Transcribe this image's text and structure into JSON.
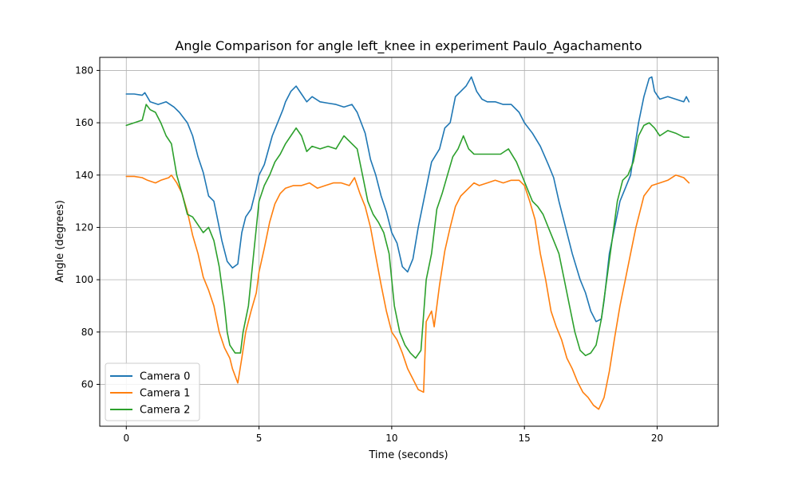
{
  "chart_data": {
    "type": "line",
    "title": "Angle Comparison for angle left_knee in experiment Paulo_Agachamento",
    "xlabel": "Time (seconds)",
    "ylabel": "Angle (degrees)",
    "xlim": [
      -1.0,
      22.3
    ],
    "ylim": [
      44,
      185
    ],
    "xticks": [
      0,
      5,
      10,
      15,
      20
    ],
    "xtick_labels": [
      "0",
      "5",
      "10",
      "15",
      "20"
    ],
    "yticks": [
      60,
      80,
      100,
      120,
      140,
      160,
      180
    ],
    "ytick_labels": [
      "60",
      "80",
      "100",
      "120",
      "140",
      "160",
      "180"
    ],
    "grid": true,
    "legend_position": "lower-left",
    "series": [
      {
        "name": "Camera 0",
        "color": "#1f77b4",
        "points": [
          [
            0,
            171
          ],
          [
            0.3,
            171
          ],
          [
            0.6,
            170.5
          ],
          [
            0.7,
            171.5
          ],
          [
            0.9,
            168
          ],
          [
            1.2,
            167
          ],
          [
            1.5,
            168
          ],
          [
            1.8,
            166
          ],
          [
            2.0,
            164
          ],
          [
            2.3,
            160
          ],
          [
            2.5,
            155
          ],
          [
            2.7,
            147
          ],
          [
            2.9,
            141
          ],
          [
            3.1,
            132
          ],
          [
            3.3,
            130
          ],
          [
            3.4,
            125
          ],
          [
            3.6,
            115
          ],
          [
            3.8,
            107
          ],
          [
            4.0,
            104.5
          ],
          [
            4.2,
            106
          ],
          [
            4.35,
            118
          ],
          [
            4.5,
            124
          ],
          [
            4.7,
            127
          ],
          [
            4.9,
            135
          ],
          [
            5.0,
            140
          ],
          [
            5.2,
            144
          ],
          [
            5.5,
            155
          ],
          [
            5.7,
            160
          ],
          [
            5.9,
            165
          ],
          [
            6.0,
            168
          ],
          [
            6.2,
            172
          ],
          [
            6.4,
            174
          ],
          [
            6.6,
            171
          ],
          [
            6.8,
            168
          ],
          [
            7.0,
            170
          ],
          [
            7.3,
            168
          ],
          [
            7.6,
            167.5
          ],
          [
            7.9,
            167
          ],
          [
            8.2,
            166
          ],
          [
            8.5,
            167
          ],
          [
            8.7,
            164
          ],
          [
            9.0,
            156
          ],
          [
            9.2,
            146
          ],
          [
            9.4,
            140
          ],
          [
            9.6,
            132
          ],
          [
            9.8,
            126
          ],
          [
            10.0,
            118
          ],
          [
            10.2,
            114
          ],
          [
            10.4,
            105
          ],
          [
            10.6,
            103
          ],
          [
            10.8,
            108
          ],
          [
            11.0,
            120
          ],
          [
            11.3,
            135
          ],
          [
            11.5,
            145
          ],
          [
            11.8,
            150
          ],
          [
            12.0,
            158
          ],
          [
            12.2,
            160
          ],
          [
            12.4,
            170
          ],
          [
            12.6,
            172
          ],
          [
            12.8,
            174
          ],
          [
            13.0,
            177.5
          ],
          [
            13.2,
            172
          ],
          [
            13.4,
            169
          ],
          [
            13.6,
            168
          ],
          [
            13.9,
            168
          ],
          [
            14.2,
            167
          ],
          [
            14.5,
            167
          ],
          [
            14.8,
            164
          ],
          [
            15.0,
            160
          ],
          [
            15.3,
            156
          ],
          [
            15.6,
            151
          ],
          [
            15.9,
            144
          ],
          [
            16.1,
            139
          ],
          [
            16.3,
            130
          ],
          [
            16.5,
            122
          ],
          [
            16.8,
            110
          ],
          [
            17.1,
            100
          ],
          [
            17.3,
            95
          ],
          [
            17.5,
            88
          ],
          [
            17.7,
            84
          ],
          [
            17.9,
            85
          ],
          [
            18.0,
            92
          ],
          [
            18.2,
            110
          ],
          [
            18.4,
            120
          ],
          [
            18.6,
            130
          ],
          [
            18.8,
            135
          ],
          [
            19.0,
            140
          ],
          [
            19.1,
            147
          ],
          [
            19.3,
            160
          ],
          [
            19.5,
            170
          ],
          [
            19.7,
            177
          ],
          [
            19.8,
            177.5
          ],
          [
            19.9,
            172
          ],
          [
            20.1,
            169
          ],
          [
            20.4,
            170
          ],
          [
            20.7,
            169
          ],
          [
            21.0,
            168
          ],
          [
            21.1,
            170
          ],
          [
            21.2,
            168
          ]
        ]
      },
      {
        "name": "Camera 1",
        "color": "#ff7f0e",
        "points": [
          [
            0,
            139.5
          ],
          [
            0.3,
            139.5
          ],
          [
            0.6,
            139
          ],
          [
            0.8,
            138
          ],
          [
            1.1,
            137
          ],
          [
            1.3,
            138
          ],
          [
            1.6,
            139
          ],
          [
            1.7,
            140
          ],
          [
            1.9,
            137
          ],
          [
            2.1,
            133
          ],
          [
            2.3,
            126
          ],
          [
            2.5,
            117
          ],
          [
            2.7,
            110
          ],
          [
            2.9,
            101
          ],
          [
            3.1,
            96
          ],
          [
            3.3,
            90
          ],
          [
            3.5,
            80
          ],
          [
            3.7,
            74
          ],
          [
            3.9,
            70
          ],
          [
            4.0,
            66
          ],
          [
            4.2,
            60.5
          ],
          [
            4.35,
            70
          ],
          [
            4.5,
            80
          ],
          [
            4.7,
            88
          ],
          [
            4.9,
            95
          ],
          [
            5.0,
            103
          ],
          [
            5.2,
            112
          ],
          [
            5.4,
            122
          ],
          [
            5.6,
            129
          ],
          [
            5.8,
            133
          ],
          [
            6.0,
            135
          ],
          [
            6.3,
            136
          ],
          [
            6.6,
            136
          ],
          [
            6.9,
            137
          ],
          [
            7.2,
            135
          ],
          [
            7.5,
            136
          ],
          [
            7.8,
            137
          ],
          [
            8.1,
            137
          ],
          [
            8.4,
            136
          ],
          [
            8.6,
            139
          ],
          [
            8.8,
            133
          ],
          [
            9.0,
            128
          ],
          [
            9.2,
            120
          ],
          [
            9.4,
            109
          ],
          [
            9.6,
            98
          ],
          [
            9.8,
            88
          ],
          [
            10.0,
            80
          ],
          [
            10.2,
            77
          ],
          [
            10.4,
            72
          ],
          [
            10.6,
            66
          ],
          [
            10.8,
            62
          ],
          [
            11.0,
            58
          ],
          [
            11.2,
            57
          ],
          [
            11.3,
            84
          ],
          [
            11.5,
            88
          ],
          [
            11.6,
            82
          ],
          [
            11.8,
            98
          ],
          [
            12.0,
            111
          ],
          [
            12.2,
            120
          ],
          [
            12.4,
            128
          ],
          [
            12.6,
            132
          ],
          [
            12.9,
            135
          ],
          [
            13.1,
            137
          ],
          [
            13.3,
            136
          ],
          [
            13.6,
            137
          ],
          [
            13.9,
            138
          ],
          [
            14.2,
            137
          ],
          [
            14.5,
            138
          ],
          [
            14.8,
            138
          ],
          [
            15.0,
            136
          ],
          [
            15.2,
            130
          ],
          [
            15.4,
            123
          ],
          [
            15.6,
            110
          ],
          [
            15.8,
            100
          ],
          [
            16.0,
            88
          ],
          [
            16.2,
            82
          ],
          [
            16.4,
            77
          ],
          [
            16.6,
            70
          ],
          [
            16.8,
            66
          ],
          [
            17.0,
            61
          ],
          [
            17.2,
            57
          ],
          [
            17.4,
            55
          ],
          [
            17.6,
            52
          ],
          [
            17.8,
            50.5
          ],
          [
            18.0,
            55
          ],
          [
            18.2,
            65
          ],
          [
            18.4,
            78
          ],
          [
            18.6,
            90
          ],
          [
            18.8,
            100
          ],
          [
            19.0,
            110
          ],
          [
            19.2,
            120
          ],
          [
            19.5,
            132
          ],
          [
            19.8,
            136
          ],
          [
            20.1,
            137
          ],
          [
            20.4,
            138
          ],
          [
            20.7,
            140
          ],
          [
            21.0,
            139
          ],
          [
            21.2,
            137
          ]
        ]
      },
      {
        "name": "Camera 2",
        "color": "#2ca02c",
        "points": [
          [
            0,
            159
          ],
          [
            0.3,
            160
          ],
          [
            0.6,
            161
          ],
          [
            0.75,
            167
          ],
          [
            0.9,
            165
          ],
          [
            1.1,
            164
          ],
          [
            1.3,
            160
          ],
          [
            1.5,
            155
          ],
          [
            1.7,
            152
          ],
          [
            1.9,
            140
          ],
          [
            2.1,
            133
          ],
          [
            2.3,
            125
          ],
          [
            2.5,
            124
          ],
          [
            2.7,
            121
          ],
          [
            2.9,
            118
          ],
          [
            3.1,
            120
          ],
          [
            3.3,
            115
          ],
          [
            3.5,
            105
          ],
          [
            3.7,
            90
          ],
          [
            3.8,
            80
          ],
          [
            3.9,
            75
          ],
          [
            4.1,
            72
          ],
          [
            4.3,
            72
          ],
          [
            4.4,
            80
          ],
          [
            4.6,
            90
          ],
          [
            4.8,
            110
          ],
          [
            5.0,
            130
          ],
          [
            5.2,
            136
          ],
          [
            5.4,
            140
          ],
          [
            5.6,
            145
          ],
          [
            5.8,
            148
          ],
          [
            6.0,
            152
          ],
          [
            6.2,
            155
          ],
          [
            6.4,
            158
          ],
          [
            6.6,
            155
          ],
          [
            6.8,
            149
          ],
          [
            7.0,
            151
          ],
          [
            7.3,
            150
          ],
          [
            7.6,
            151
          ],
          [
            7.9,
            150
          ],
          [
            8.2,
            155
          ],
          [
            8.5,
            152
          ],
          [
            8.7,
            150
          ],
          [
            8.9,
            140
          ],
          [
            9.1,
            130
          ],
          [
            9.3,
            125
          ],
          [
            9.5,
            122
          ],
          [
            9.7,
            118
          ],
          [
            9.9,
            110
          ],
          [
            10.1,
            90
          ],
          [
            10.3,
            80
          ],
          [
            10.5,
            75
          ],
          [
            10.7,
            72
          ],
          [
            10.9,
            70
          ],
          [
            11.1,
            73
          ],
          [
            11.3,
            100
          ],
          [
            11.5,
            110
          ],
          [
            11.7,
            127
          ],
          [
            11.9,
            133
          ],
          [
            12.1,
            140
          ],
          [
            12.3,
            147
          ],
          [
            12.5,
            150
          ],
          [
            12.7,
            155
          ],
          [
            12.9,
            150
          ],
          [
            13.1,
            148
          ],
          [
            13.3,
            148
          ],
          [
            13.5,
            148
          ],
          [
            13.8,
            148
          ],
          [
            14.1,
            148
          ],
          [
            14.4,
            150
          ],
          [
            14.7,
            145
          ],
          [
            14.9,
            140
          ],
          [
            15.1,
            135
          ],
          [
            15.3,
            130
          ],
          [
            15.5,
            128
          ],
          [
            15.7,
            125
          ],
          [
            15.9,
            120
          ],
          [
            16.1,
            115
          ],
          [
            16.3,
            110
          ],
          [
            16.5,
            100
          ],
          [
            16.7,
            90
          ],
          [
            16.9,
            80
          ],
          [
            17.1,
            73
          ],
          [
            17.3,
            71
          ],
          [
            17.5,
            72
          ],
          [
            17.7,
            75
          ],
          [
            17.9,
            85
          ],
          [
            18.1,
            100
          ],
          [
            18.3,
            115
          ],
          [
            18.5,
            130
          ],
          [
            18.7,
            138
          ],
          [
            18.9,
            140
          ],
          [
            19.1,
            145
          ],
          [
            19.3,
            155
          ],
          [
            19.5,
            159
          ],
          [
            19.7,
            160
          ],
          [
            19.9,
            158
          ],
          [
            20.1,
            155
          ],
          [
            20.4,
            157
          ],
          [
            20.7,
            156
          ],
          [
            21.0,
            154.5
          ],
          [
            21.2,
            154.5
          ]
        ]
      }
    ]
  }
}
